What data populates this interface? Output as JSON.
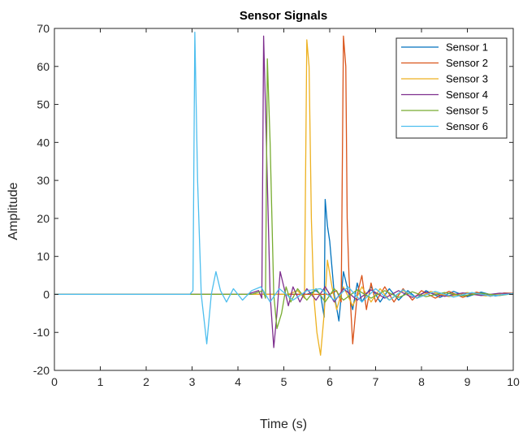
{
  "chart_data": {
    "type": "line",
    "title": "Sensor Signals",
    "xlabel": "Time (s)",
    "ylabel": "Amplitude",
    "xlim": [
      0,
      10
    ],
    "ylim": [
      -20,
      70
    ],
    "xticks": [
      "0",
      "1",
      "2",
      "3",
      "4",
      "5",
      "6",
      "7",
      "8",
      "9",
      "10"
    ],
    "yticks": [
      "-20",
      "-10",
      "0",
      "10",
      "20",
      "30",
      "40",
      "50",
      "60",
      "70"
    ],
    "grid": false,
    "legend_position": "top-right",
    "series": [
      {
        "name": "Sensor 1",
        "color": "#0072BD",
        "x": [
          0,
          5.5,
          5.7,
          5.8,
          5.88,
          5.9,
          5.95,
          6.0,
          6.1,
          6.2,
          6.3,
          6.4,
          6.5,
          6.6,
          6.7,
          6.9,
          7.1,
          7.3,
          7.5,
          7.7,
          7.9,
          8.1,
          8.4,
          8.7,
          9.0,
          9.3,
          9.6,
          10
        ],
        "y": [
          0,
          0,
          1,
          0,
          -6,
          25,
          18,
          14,
          0,
          -7,
          6,
          1,
          -4,
          3,
          -2,
          2,
          -2,
          1.5,
          -1.5,
          1,
          -1,
          1,
          -0.8,
          0.8,
          -0.6,
          0.6,
          -0.4,
          0.3
        ]
      },
      {
        "name": "Sensor 2",
        "color": "#D95319",
        "x": [
          0,
          6.0,
          6.15,
          6.25,
          6.3,
          6.35,
          6.38,
          6.42,
          6.5,
          6.6,
          6.7,
          6.8,
          6.9,
          7.0,
          7.2,
          7.4,
          7.6,
          7.8,
          8.0,
          8.3,
          8.6,
          8.9,
          9.2,
          9.5,
          9.8,
          10
        ],
        "y": [
          0,
          0,
          1,
          -2,
          68,
          60,
          20,
          5,
          -13,
          0,
          5,
          -4,
          3,
          -2,
          2,
          -2,
          1.5,
          -1.5,
          1,
          -1,
          0.8,
          -0.8,
          0.6,
          -0.5,
          0.4,
          0.3
        ]
      },
      {
        "name": "Sensor 3",
        "color": "#EDB120",
        "x": [
          0,
          5.1,
          5.3,
          5.45,
          5.5,
          5.55,
          5.6,
          5.65,
          5.72,
          5.8,
          5.88,
          5.95,
          6.05,
          6.15,
          6.3,
          6.5,
          6.7,
          6.9,
          7.1,
          7.3,
          7.6,
          7.9,
          8.2,
          8.6,
          9.0,
          9.4,
          9.8,
          10
        ],
        "y": [
          0,
          0,
          1,
          -1,
          67,
          60,
          20,
          0,
          -10,
          -16,
          -5,
          9,
          2,
          -4,
          2,
          -3,
          2,
          -2,
          1.5,
          -1.5,
          1,
          -1,
          0.8,
          -0.6,
          0.5,
          -0.4,
          0.3,
          0.2
        ]
      },
      {
        "name": "Sensor 4",
        "color": "#7E2F8E",
        "x": [
          0,
          4.2,
          4.45,
          4.52,
          4.56,
          4.62,
          4.7,
          4.78,
          4.85,
          4.92,
          5.0,
          5.1,
          5.2,
          5.35,
          5.5,
          5.7,
          5.9,
          6.1,
          6.3,
          6.6,
          6.9,
          7.2,
          7.5,
          7.8,
          8.1,
          8.5,
          8.9,
          9.3,
          9.7,
          10
        ],
        "y": [
          0,
          0,
          1,
          -1,
          68,
          40,
          0,
          -14,
          -5,
          6,
          2,
          -3,
          2,
          -2,
          1.5,
          -1.5,
          2,
          -2,
          1.5,
          -1.5,
          1.2,
          -1,
          1,
          -0.8,
          0.6,
          -0.5,
          0.4,
          -0.3,
          0.3,
          0.2
        ]
      },
      {
        "name": "Sensor 5",
        "color": "#77AC30",
        "x": [
          0,
          4.3,
          4.55,
          4.6,
          4.64,
          4.7,
          4.78,
          4.85,
          4.95,
          5.05,
          5.15,
          5.3,
          5.5,
          5.7,
          5.9,
          6.1,
          6.3,
          6.6,
          6.9,
          7.2,
          7.5,
          7.8,
          8.1,
          8.5,
          8.9,
          9.3,
          9.7,
          10
        ],
        "y": [
          0,
          0,
          1,
          -1,
          62,
          40,
          0,
          -9,
          -5,
          2,
          -2,
          1.5,
          -1.5,
          1.5,
          -2,
          1.5,
          -1.5,
          1.2,
          -1,
          1,
          -0.8,
          0.7,
          -0.6,
          0.5,
          -0.4,
          0.3,
          -0.3,
          0.2
        ]
      },
      {
        "name": "Sensor 6",
        "color": "#4DBEEE",
        "x": [
          0,
          2.95,
          3.02,
          3.06,
          3.12,
          3.2,
          3.32,
          3.42,
          3.52,
          3.62,
          3.75,
          3.9,
          4.1,
          4.3,
          4.5,
          4.7,
          4.9,
          5.2,
          5.5,
          5.8,
          6.1,
          6.4,
          6.7,
          7.0,
          7.3,
          7.6,
          7.9,
          8.3,
          8.7,
          9.1,
          9.5,
          10
        ],
        "y": [
          0,
          0,
          1,
          69,
          30,
          0,
          -13,
          0,
          6,
          1,
          -2,
          1.5,
          -1.5,
          1,
          2,
          -2,
          1.5,
          -1.5,
          1,
          1.5,
          -1.5,
          2,
          -2,
          1.5,
          -1.5,
          1.2,
          -1,
          0.8,
          -0.7,
          0.5,
          -0.4,
          0.2
        ]
      }
    ]
  }
}
